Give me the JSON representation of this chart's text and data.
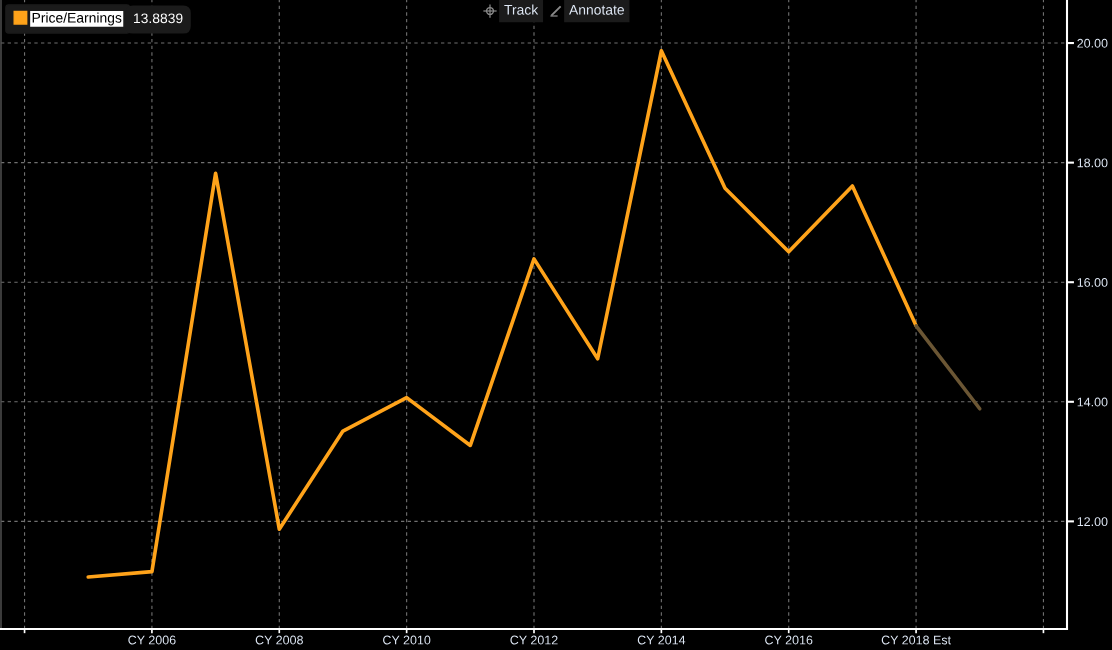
{
  "chart_data": {
    "type": "line",
    "categories": [
      null,
      null,
      "CY 2006",
      null,
      "CY 2008",
      null,
      "CY 2010",
      null,
      "CY 2012",
      null,
      "CY 2014",
      null,
      "CY 2016",
      null,
      "CY 2018 Est",
      null,
      null
    ],
    "series": [
      {
        "name": "Price/Earnings",
        "color": "#ffa31a",
        "values": [
          null,
          11.07,
          11.16,
          17.82,
          11.87,
          13.51,
          14.07,
          13.27,
          16.39,
          14.72,
          19.87,
          17.57,
          16.51,
          17.61,
          15.27,
          null,
          null
        ]
      },
      {
        "color": "#6b5634",
        "values": [
          null,
          null,
          null,
          null,
          null,
          null,
          null,
          null,
          null,
          null,
          null,
          null,
          null,
          null,
          15.27,
          13.8839,
          null
        ]
      }
    ],
    "ylim": [
      10.2,
      20.72
    ],
    "yticks": [
      {
        "value": 12,
        "label": "12.00"
      },
      {
        "value": 14,
        "label": "14.00"
      },
      {
        "value": 16,
        "label": "16.00"
      },
      {
        "value": 18,
        "label": "18.00"
      },
      {
        "value": 20,
        "label": "20.00"
      }
    ],
    "grid": true,
    "legend": "top left",
    "marker": "none",
    "line_style": "solid",
    "annotations": [
      "13.8839",
      "Track",
      "Annotate"
    ]
  }
}
